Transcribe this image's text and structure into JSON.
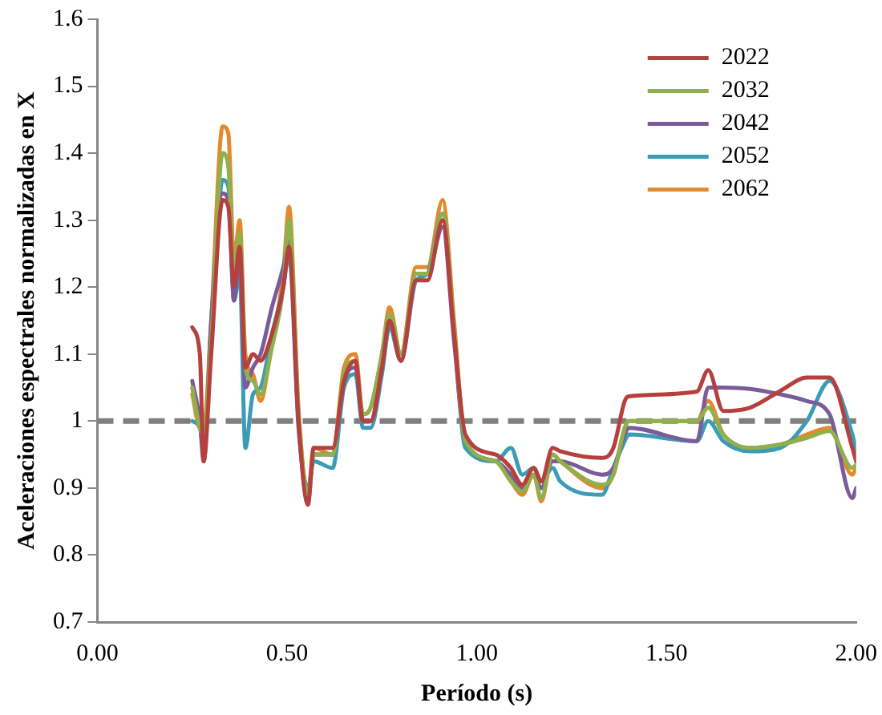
{
  "chart_data": {
    "type": "line",
    "xlabel": "Período (s)",
    "ylabel": "Aceleraciones espectrales normalizadas en X",
    "x": [
      0.25,
      0.27,
      0.28,
      0.3,
      0.33,
      0.345,
      0.36,
      0.375,
      0.39,
      0.41,
      0.43,
      0.46,
      0.49,
      0.505,
      0.53,
      0.555,
      0.57,
      0.62,
      0.65,
      0.68,
      0.7,
      0.72,
      0.75,
      0.77,
      0.8,
      0.84,
      0.87,
      0.91,
      0.94,
      0.97,
      1.05,
      1.09,
      1.12,
      1.15,
      1.17,
      1.2,
      1.22,
      1.33,
      1.36,
      1.39,
      1.4,
      1.58,
      1.61,
      1.65,
      1.72,
      1.8,
      1.87,
      1.93,
      1.99,
      2.0
    ],
    "series": [
      {
        "name": "2022",
        "color": "#b5403e",
        "values": [
          1.14,
          1.1,
          0.94,
          1.1,
          1.33,
          1.32,
          1.2,
          1.26,
          1.08,
          1.1,
          1.09,
          1.13,
          1.2,
          1.26,
          1.0,
          0.875,
          0.96,
          0.96,
          1.06,
          1.09,
          1.0,
          1.0,
          1.08,
          1.15,
          1.09,
          1.21,
          1.21,
          1.3,
          1.13,
          0.98,
          0.95,
          0.93,
          0.905,
          0.93,
          0.91,
          0.96,
          0.955,
          0.945,
          0.96,
          1.03,
          1.037,
          1.044,
          1.076,
          1.015,
          1.02,
          1.045,
          1.065,
          1.065,
          0.96,
          0.94
        ]
      },
      {
        "name": "2032",
        "color": "#8eb04d",
        "values": [
          1.05,
          0.99,
          0.98,
          1.12,
          1.4,
          1.38,
          1.22,
          1.28,
          1.08,
          1.06,
          1.04,
          1.11,
          1.2,
          1.3,
          1.01,
          0.89,
          0.95,
          0.95,
          1.07,
          1.09,
          1.01,
          1.02,
          1.1,
          1.16,
          1.1,
          1.22,
          1.22,
          1.31,
          1.14,
          0.97,
          0.94,
          0.91,
          0.895,
          0.92,
          0.885,
          0.95,
          0.94,
          0.905,
          0.92,
          0.99,
          1.0,
          1.0,
          1.02,
          0.98,
          0.96,
          0.965,
          0.975,
          0.985,
          0.93,
          0.935
        ]
      },
      {
        "name": "2042",
        "color": "#7a5c9a",
        "values": [
          1.06,
          1.0,
          0.94,
          1.15,
          1.34,
          1.33,
          1.18,
          1.25,
          1.05,
          1.08,
          1.1,
          1.17,
          1.23,
          1.27,
          1.0,
          0.88,
          0.95,
          0.95,
          1.06,
          1.08,
          1.0,
          1.0,
          1.08,
          1.15,
          1.09,
          1.22,
          1.22,
          1.29,
          1.12,
          0.97,
          0.94,
          0.92,
          0.9,
          0.92,
          0.9,
          0.94,
          0.94,
          0.92,
          0.93,
          0.98,
          0.99,
          0.97,
          1.05,
          1.05,
          1.048,
          1.04,
          1.03,
          1.01,
          0.885,
          0.9
        ]
      },
      {
        "name": "2052",
        "color": "#3b9db5",
        "values": [
          1.0,
          0.99,
          0.96,
          1.12,
          1.36,
          1.35,
          1.18,
          1.22,
          0.96,
          1.04,
          1.05,
          1.13,
          1.2,
          1.25,
          0.99,
          0.9,
          0.94,
          0.93,
          1.05,
          1.07,
          0.99,
          0.99,
          1.07,
          1.14,
          1.09,
          1.21,
          1.22,
          1.31,
          1.13,
          0.96,
          0.94,
          0.96,
          0.92,
          0.93,
          0.91,
          0.93,
          0.91,
          0.89,
          0.93,
          0.97,
          0.98,
          0.97,
          1.0,
          0.97,
          0.955,
          0.96,
          1.0,
          1.06,
          0.98,
          0.955
        ]
      },
      {
        "name": "2062",
        "color": "#e38a2e",
        "values": [
          1.04,
          0.99,
          0.99,
          1.15,
          1.44,
          1.43,
          1.24,
          1.3,
          1.1,
          1.07,
          1.03,
          1.12,
          1.22,
          1.32,
          1.02,
          0.89,
          0.96,
          0.95,
          1.08,
          1.1,
          1.01,
          1.02,
          1.1,
          1.17,
          1.1,
          1.23,
          1.23,
          1.33,
          1.15,
          0.97,
          0.94,
          0.91,
          0.89,
          0.92,
          0.88,
          0.95,
          0.94,
          0.9,
          0.92,
          0.99,
          1.0,
          1.0,
          1.03,
          0.98,
          0.96,
          0.965,
          0.98,
          0.99,
          0.92,
          0.93
        ]
      }
    ],
    "xlim": [
      0,
      2
    ],
    "xticks": [
      {
        "value": 0,
        "label": "0.00"
      },
      {
        "value": 0.5,
        "label": "0.50"
      },
      {
        "value": 1,
        "label": "1.00"
      },
      {
        "value": 1.5,
        "label": "1.50"
      },
      {
        "value": 2,
        "label": "2.00"
      }
    ],
    "ylim": [
      0.7,
      1.6
    ],
    "yticks": [
      0.7,
      0.8,
      0.9,
      1,
      1.1,
      1.2,
      1.3,
      1.4,
      1.5,
      1.6
    ],
    "ref_lines": [
      {
        "axis": "y",
        "value": 1,
        "color": "#7f7f7f",
        "line_style": "dashed"
      }
    ],
    "grid": false,
    "legend": "top right",
    "marker": "none",
    "line_style": "solid"
  }
}
